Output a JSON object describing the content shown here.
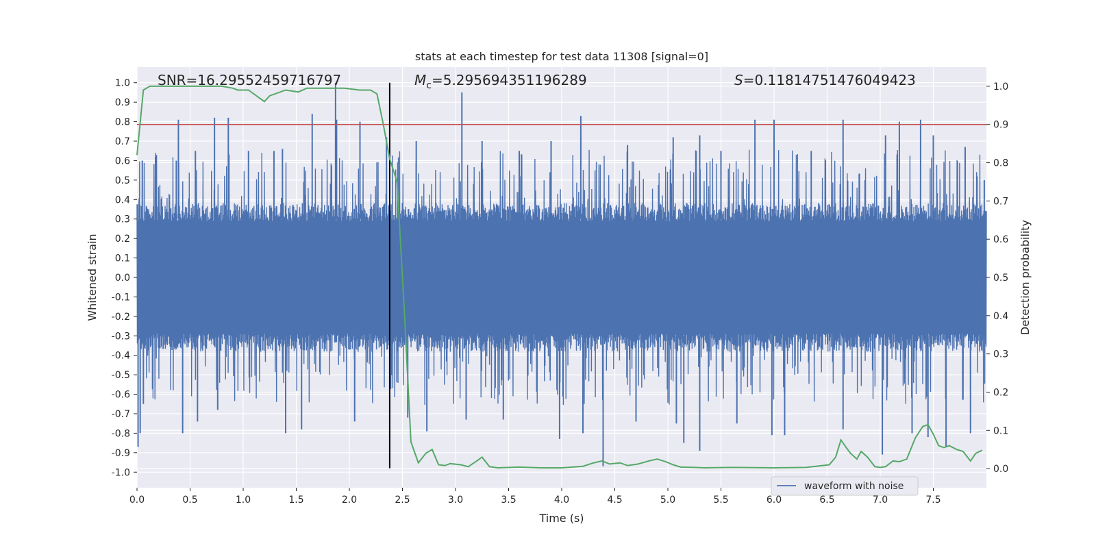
{
  "chart_data": {
    "type": "line",
    "title": "stats at each timestep for test data 11308 [signal=0]",
    "xlabel": "Time (s)",
    "ylabel": "Whitened strain",
    "y2label": "Detection probability",
    "xlim": [
      0.0,
      8.0
    ],
    "ylim": [
      -1.08,
      1.08
    ],
    "y2lim": [
      -0.05,
      1.05
    ],
    "xticks": [
      "0.0",
      "0.5",
      "1.0",
      "1.5",
      "2.0",
      "2.5",
      "3.0",
      "3.5",
      "4.0",
      "4.5",
      "5.0",
      "5.5",
      "6.0",
      "6.5",
      "7.0",
      "7.5"
    ],
    "yticks": [
      "-1.0",
      "-0.9",
      "-0.8",
      "-0.7",
      "-0.6",
      "-0.5",
      "-0.4",
      "-0.3",
      "-0.2",
      "-0.1",
      "0.0",
      "0.1",
      "0.2",
      "0.3",
      "0.4",
      "0.5",
      "0.6",
      "0.7",
      "0.8",
      "0.9",
      "1.0"
    ],
    "y2ticks": [
      "0.0",
      "0.1",
      "0.2",
      "0.3",
      "0.4",
      "0.5",
      "0.6",
      "0.7",
      "0.8",
      "0.9",
      "1.0"
    ],
    "grid": true,
    "legend": {
      "placement": "lower-right",
      "entries": [
        "waveform with noise"
      ]
    },
    "annotations": {
      "snr": "SNR=16.29552459716797",
      "mc_symbol": "M",
      "mc_sub": "c",
      "mc_value": "=5.295694351196289",
      "s_symbol": "S",
      "s_value": "=0.11814751476049423"
    },
    "threshold": {
      "y2": 0.9,
      "color": "#c44e52"
    },
    "vline": {
      "x": 2.38,
      "ymin": -0.98,
      "ymax": 1.0,
      "color": "#000000"
    },
    "waveform": {
      "name": "waveform with noise",
      "color": "#4c72b0",
      "band_envelope": 0.4,
      "peaks_pos": [
        [
          0.05,
          0.6
        ],
        [
          0.18,
          0.62
        ],
        [
          0.37,
          0.6
        ],
        [
          0.39,
          0.81
        ],
        [
          0.55,
          0.65
        ],
        [
          0.73,
          0.82
        ],
        [
          0.86,
          0.82
        ],
        [
          1.05,
          0.65
        ],
        [
          1.29,
          0.65
        ],
        [
          1.37,
          0.66
        ],
        [
          1.65,
          0.84
        ],
        [
          1.87,
          1.0
        ],
        [
          1.88,
          0.81
        ],
        [
          2.1,
          0.8
        ],
        [
          2.35,
          0.72
        ],
        [
          2.63,
          0.7
        ],
        [
          3.06,
          0.95
        ],
        [
          3.25,
          0.7
        ],
        [
          3.6,
          0.65
        ],
        [
          3.9,
          0.7
        ],
        [
          4.18,
          0.83
        ],
        [
          4.62,
          0.68
        ],
        [
          5.05,
          0.72
        ],
        [
          5.3,
          0.73
        ],
        [
          5.5,
          0.65
        ],
        [
          5.82,
          0.81
        ],
        [
          6.0,
          0.81
        ],
        [
          6.35,
          0.65
        ],
        [
          6.65,
          0.81
        ],
        [
          7.05,
          0.73
        ],
        [
          7.18,
          0.8
        ],
        [
          7.38,
          0.81
        ],
        [
          7.5,
          0.73
        ],
        [
          7.8,
          0.67
        ],
        [
          7.98,
          0.5
        ]
      ],
      "peaks_neg": [
        [
          0.01,
          -0.87
        ],
        [
          0.03,
          -0.8
        ],
        [
          0.06,
          -0.65
        ],
        [
          0.43,
          -0.8
        ],
        [
          0.57,
          -0.74
        ],
        [
          0.76,
          -0.68
        ],
        [
          1.4,
          -0.8
        ],
        [
          1.55,
          -0.78
        ],
        [
          2.05,
          -0.74
        ],
        [
          2.55,
          -0.72
        ],
        [
          2.73,
          -0.79
        ],
        [
          3.1,
          -0.73
        ],
        [
          3.45,
          -0.73
        ],
        [
          3.98,
          -0.83
        ],
        [
          4.2,
          -0.8
        ],
        [
          4.39,
          -0.97
        ],
        [
          4.7,
          -0.74
        ],
        [
          5.08,
          -0.75
        ],
        [
          5.15,
          -0.85
        ],
        [
          5.3,
          -0.89
        ],
        [
          5.65,
          -0.75
        ],
        [
          5.98,
          -0.81
        ],
        [
          6.1,
          -0.81
        ],
        [
          6.65,
          -0.78
        ],
        [
          7.02,
          -0.91
        ],
        [
          7.3,
          -0.8
        ],
        [
          7.45,
          -0.82
        ],
        [
          7.62,
          -0.87
        ],
        [
          7.85,
          -0.8
        ]
      ]
    },
    "probability": {
      "name": "detection probability",
      "color": "#55a868",
      "x": [
        0.0,
        0.06,
        0.12,
        0.3,
        0.5,
        0.8,
        0.9,
        0.95,
        1.05,
        1.15,
        1.2,
        1.25,
        1.4,
        1.52,
        1.6,
        1.7,
        1.95,
        2.1,
        2.2,
        2.26,
        2.32,
        2.38,
        2.45,
        2.52,
        2.58,
        2.65,
        2.72,
        2.78,
        2.84,
        2.9,
        2.95,
        3.05,
        3.12,
        3.2,
        3.25,
        3.32,
        3.4,
        3.6,
        3.8,
        4.0,
        4.2,
        4.3,
        4.38,
        4.45,
        4.55,
        4.62,
        4.72,
        4.82,
        4.9,
        4.98,
        5.05,
        5.12,
        5.25,
        5.35,
        5.6,
        6.0,
        6.3,
        6.52,
        6.58,
        6.63,
        6.68,
        6.72,
        6.78,
        6.82,
        6.88,
        6.95,
        7.0,
        7.05,
        7.12,
        7.18,
        7.25,
        7.33,
        7.4,
        7.45,
        7.5,
        7.55,
        7.6,
        7.65,
        7.72,
        7.78,
        7.85,
        7.9,
        7.96
      ],
      "y": [
        0.82,
        0.99,
        1.0,
        1.0,
        1.0,
        1.0,
        0.995,
        0.99,
        0.99,
        0.97,
        0.96,
        0.975,
        0.99,
        0.985,
        0.995,
        0.995,
        0.995,
        0.99,
        0.99,
        0.98,
        0.9,
        0.81,
        0.75,
        0.4,
        0.07,
        0.015,
        0.04,
        0.05,
        0.01,
        0.008,
        0.013,
        0.01,
        0.005,
        0.02,
        0.03,
        0.005,
        0.002,
        0.004,
        0.002,
        0.002,
        0.006,
        0.015,
        0.02,
        0.012,
        0.015,
        0.008,
        0.012,
        0.02,
        0.025,
        0.018,
        0.01,
        0.004,
        0.003,
        0.002,
        0.003,
        0.002,
        0.003,
        0.01,
        0.03,
        0.075,
        0.055,
        0.04,
        0.025,
        0.045,
        0.03,
        0.005,
        0.003,
        0.005,
        0.02,
        0.018,
        0.025,
        0.08,
        0.11,
        0.115,
        0.09,
        0.06,
        0.055,
        0.06,
        0.05,
        0.045,
        0.02,
        0.04,
        0.048
      ]
    }
  }
}
